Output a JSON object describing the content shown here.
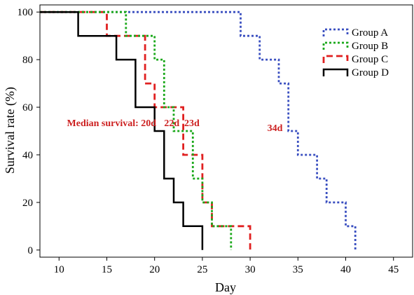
{
  "chart_data": {
    "type": "line",
    "subtype": "kaplan-meier step",
    "title": "",
    "xlabel": "Day",
    "ylabel": "Survival rate (%)",
    "xlim": [
      8,
      47
    ],
    "ylim": [
      -3,
      103
    ],
    "xticks": [
      10,
      15,
      20,
      25,
      30,
      35,
      40,
      45
    ],
    "yticks": [
      0,
      20,
      40,
      60,
      80,
      100
    ],
    "grid": false,
    "legend_position": "top-right",
    "series": [
      {
        "name": "Group A",
        "color": "#3a4fc0",
        "dash": "dotted",
        "x": [
          8,
          29,
          29,
          31,
          31,
          33,
          33,
          34,
          34,
          35,
          35,
          37,
          37,
          38,
          38,
          40,
          40,
          41,
          41
        ],
        "y": [
          100,
          100,
          90,
          90,
          80,
          80,
          70,
          70,
          50,
          50,
          40,
          40,
          30,
          30,
          20,
          20,
          10,
          10,
          0
        ]
      },
      {
        "name": "Group B",
        "color": "#1aa81a",
        "dash": "dotted",
        "x": [
          8,
          17,
          17,
          20,
          20,
          21,
          21,
          22,
          22,
          24,
          24,
          25,
          25,
          26,
          26,
          28,
          28
        ],
        "y": [
          100,
          100,
          90,
          90,
          80,
          80,
          60,
          60,
          50,
          50,
          30,
          30,
          20,
          20,
          10,
          10,
          0
        ]
      },
      {
        "name": "Group C",
        "color": "#e02020",
        "dash": "dashed",
        "x": [
          8,
          15,
          15,
          19,
          19,
          20,
          20,
          23,
          23,
          25,
          25,
          26,
          26,
          30,
          30
        ],
        "y": [
          100,
          100,
          90,
          90,
          70,
          70,
          60,
          60,
          40,
          40,
          20,
          20,
          10,
          10,
          0
        ]
      },
      {
        "name": "Group D",
        "color": "#000000",
        "dash": "solid",
        "x": [
          8,
          12,
          12,
          16,
          16,
          18,
          18,
          20,
          20,
          21,
          21,
          22,
          22,
          23,
          23,
          25,
          25
        ],
        "y": [
          100,
          100,
          90,
          90,
          80,
          80,
          60,
          60,
          50,
          50,
          30,
          30,
          20,
          20,
          10,
          10,
          0
        ]
      }
    ],
    "annotations": [
      {
        "text": "Median survival: 20d",
        "x": 15.5,
        "y": 52,
        "color": "#cc1f1f"
      },
      {
        "text": "22d",
        "x": 21.8,
        "y": 52,
        "color": "#cc1f1f"
      },
      {
        "text": "23d",
        "x": 23.9,
        "y": 52,
        "color": "#cc1f1f"
      },
      {
        "text": "34d",
        "x": 32.6,
        "y": 50,
        "color": "#cc1f1f"
      }
    ]
  }
}
